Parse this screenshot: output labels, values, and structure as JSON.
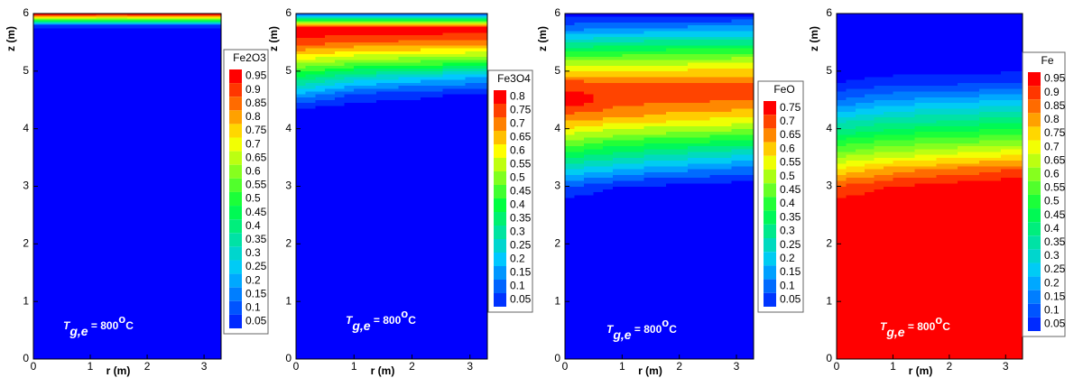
{
  "chart_data": [
    {
      "type": "contour",
      "legend_title": "Fe2O3",
      "xlabel": "r (m)",
      "ylabel": "z (m)",
      "xlim": [
        0,
        3.3
      ],
      "ylim": [
        0,
        6
      ],
      "xticks": [
        0,
        1,
        2,
        3
      ],
      "yticks": [
        0,
        1,
        2,
        3,
        4,
        5,
        6
      ],
      "colormap": [
        "#0000ff",
        "#00c8ff",
        "#00ff40",
        "#ffff00",
        "#ff0000"
      ],
      "levels": [
        0.05,
        0.1,
        0.15,
        0.2,
        0.25,
        0.3,
        0.35,
        0.4,
        0.45,
        0.5,
        0.55,
        0.6,
        0.65,
        0.7,
        0.75,
        0.8,
        0.85,
        0.9,
        0.95
      ],
      "x": [
        0,
        3.3
      ],
      "y": [
        0,
        5.7,
        5.8,
        5.9,
        6
      ],
      "values": [
        [
          0,
          0
        ],
        [
          0,
          0
        ],
        [
          0.1,
          0.1
        ],
        [
          0.6,
          0.6
        ],
        [
          1,
          1
        ]
      ],
      "annotation": {
        "main": "T",
        "sub": "g,e",
        "rest": " = 800",
        "sup": "o",
        "end": "C"
      }
    },
    {
      "type": "contour",
      "legend_title": "Fe3O4",
      "xlabel": "r (m)",
      "ylabel": "z (m)",
      "xlim": [
        0,
        3.3
      ],
      "ylim": [
        0,
        6
      ],
      "xticks": [
        0,
        1,
        2,
        3
      ],
      "yticks": [
        0,
        1,
        2,
        3,
        4,
        5,
        6
      ],
      "colormap": [
        "#0000ff",
        "#00c8ff",
        "#00ff40",
        "#ffff00",
        "#ff0000"
      ],
      "levels": [
        0.05,
        0.1,
        0.15,
        0.2,
        0.25,
        0.3,
        0.35,
        0.4,
        0.45,
        0.5,
        0.55,
        0.6,
        0.65,
        0.7,
        0.75,
        0.8
      ],
      "x": [
        0,
        1,
        3.3
      ],
      "y": [
        0,
        4.3,
        4.6,
        4.9,
        5.2,
        5.5,
        5.75,
        5.9,
        6
      ],
      "values": [
        [
          0,
          0,
          0
        ],
        [
          0.02,
          0,
          0
        ],
        [
          0.2,
          0.1,
          0.03
        ],
        [
          0.4,
          0.3,
          0.2
        ],
        [
          0.6,
          0.55,
          0.5
        ],
        [
          0.78,
          0.75,
          0.72
        ],
        [
          0.85,
          0.85,
          0.85
        ],
        [
          0.4,
          0.4,
          0.4
        ],
        [
          0.1,
          0.1,
          0.1
        ]
      ],
      "annotation": {
        "main": "T",
        "sub": "g,e",
        "rest": " = 800",
        "sup": "o",
        "end": "C"
      }
    },
    {
      "type": "contour",
      "legend_title": "FeO",
      "xlabel": "r (m)",
      "ylabel": "z (m)",
      "xlim": [
        0,
        3.3
      ],
      "ylim": [
        0,
        6
      ],
      "xticks": [
        0,
        1,
        2,
        3
      ],
      "yticks": [
        0,
        1,
        2,
        3,
        4,
        5,
        6
      ],
      "colormap": [
        "#0000ff",
        "#00c8ff",
        "#00ff40",
        "#ffff00",
        "#ff0000"
      ],
      "levels": [
        0.05,
        0.1,
        0.15,
        0.2,
        0.25,
        0.3,
        0.35,
        0.4,
        0.45,
        0.5,
        0.55,
        0.6,
        0.65,
        0.7,
        0.75
      ],
      "x": [
        0,
        1,
        3.3
      ],
      "y": [
        0,
        2.7,
        3.0,
        3.3,
        3.6,
        3.9,
        4.2,
        4.5,
        4.8,
        5.1,
        5.4,
        5.7,
        6
      ],
      "values": [
        [
          0,
          0,
          0
        ],
        [
          0.02,
          0,
          0
        ],
        [
          0.1,
          0.05,
          0.02
        ],
        [
          0.25,
          0.2,
          0.12
        ],
        [
          0.4,
          0.35,
          0.28
        ],
        [
          0.55,
          0.5,
          0.45
        ],
        [
          0.68,
          0.65,
          0.6
        ],
        [
          0.8,
          0.72,
          0.7
        ],
        [
          0.72,
          0.7,
          0.7
        ],
        [
          0.55,
          0.55,
          0.58
        ],
        [
          0.35,
          0.38,
          0.4
        ],
        [
          0.15,
          0.18,
          0.2
        ],
        [
          0.02,
          0.03,
          0.03
        ]
      ],
      "annotation": {
        "main": "T",
        "sub": "g,e",
        "rest": " = 800",
        "sup": "o",
        "end": "C"
      }
    },
    {
      "type": "contour",
      "legend_title": "Fe",
      "xlabel": "r (m)",
      "ylabel": "z (m)",
      "xlim": [
        0,
        3.3
      ],
      "ylim": [
        0,
        6
      ],
      "xticks": [
        0,
        1,
        2,
        3
      ],
      "yticks": [
        0,
        1,
        2,
        3,
        4,
        5,
        6
      ],
      "colormap": [
        "#0000ff",
        "#00c8ff",
        "#00ff40",
        "#ffff00",
        "#ff0000"
      ],
      "levels": [
        0.05,
        0.1,
        0.15,
        0.2,
        0.25,
        0.3,
        0.35,
        0.4,
        0.45,
        0.5,
        0.55,
        0.6,
        0.65,
        0.7,
        0.75,
        0.8,
        0.85,
        0.9,
        0.95
      ],
      "x": [
        0,
        1,
        3.3
      ],
      "y": [
        0,
        2.7,
        3.0,
        3.3,
        3.6,
        3.9,
        4.2,
        4.5,
        4.8,
        5.1,
        6
      ],
      "values": [
        [
          1,
          1,
          1
        ],
        [
          0.98,
          1,
          1
        ],
        [
          0.9,
          0.95,
          1
        ],
        [
          0.75,
          0.82,
          0.9
        ],
        [
          0.6,
          0.65,
          0.72
        ],
        [
          0.45,
          0.5,
          0.55
        ],
        [
          0.3,
          0.35,
          0.4
        ],
        [
          0.15,
          0.2,
          0.25
        ],
        [
          0.05,
          0.08,
          0.1
        ],
        [
          0,
          0.01,
          0.02
        ],
        [
          0,
          0,
          0
        ]
      ],
      "annotation": {
        "main": "T",
        "sub": "g,e",
        "rest": " = 800",
        "sup": "o",
        "end": "C"
      }
    }
  ]
}
